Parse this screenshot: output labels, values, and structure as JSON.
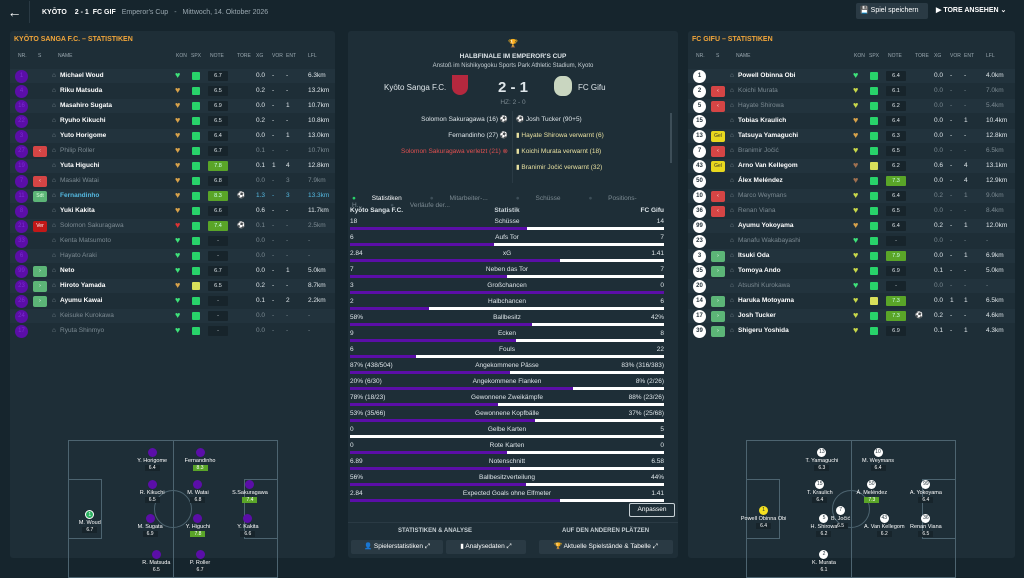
{
  "topbar": {
    "home": "KYŌTO",
    "score": "2 - 1",
    "away": "FC GIF",
    "competition": "Emperor's Cup",
    "date": "Mittwoch, 14. Oktober 2026",
    "save_label": "Spiel speichern",
    "goals_label": "TORE ANSEHEN"
  },
  "columns": [
    "NR.",
    "S",
    "NAME",
    "KON",
    "SPX",
    "NOTE",
    "TORE",
    "XG",
    "VOR",
    "ENT",
    "LFL"
  ],
  "left": {
    "title": "KYŌTO SANGA F.C. – STATISTIKEN",
    "players": [
      [
        "1",
        "",
        "Michael Woud",
        "g",
        "u",
        "6.7",
        "",
        "0.0",
        "-",
        "-",
        "6.3km",
        ""
      ],
      [
        "4",
        "",
        "Riku Matsuda",
        "o",
        "u",
        "6.5",
        "",
        "0.2",
        "-",
        "-",
        "13.2km",
        ""
      ],
      [
        "16",
        "",
        "Masahiro Sugata",
        "o",
        "u",
        "6.9",
        "",
        "0.0",
        "-",
        "1",
        "10.7km",
        ""
      ],
      [
        "22",
        "",
        "Ryuho Kikuchi",
        "o",
        "u",
        "6.5",
        "",
        "0.2",
        "-",
        "-",
        "10.8km",
        ""
      ],
      [
        "3",
        "",
        "Yuto Horigome",
        "o",
        "n",
        "6.4",
        "",
        "0.0",
        "-",
        "1",
        "13.0km",
        ""
      ],
      [
        "27",
        "sub",
        "Philip Roller",
        "o",
        "u",
        "6.7",
        "",
        "0.1",
        "-",
        "-",
        "10.7km",
        "dim"
      ],
      [
        "19",
        "",
        "Yuta Higuchi",
        "o",
        "u",
        "7.8",
        "",
        "0.1",
        "1",
        "4",
        "12.8km",
        ""
      ],
      [
        "7",
        "sub",
        "Masaki Watai",
        "o",
        "u",
        "6.8",
        "",
        "0.0",
        "-",
        "3",
        "7.9km",
        "dim"
      ],
      [
        "11",
        "Sdt",
        "Fernandinho",
        "o",
        "u",
        "8.3",
        "⚽",
        "1.3",
        "-",
        "3",
        "13.3km",
        "hl"
      ],
      [
        "8",
        "",
        "Yuki Kakita",
        "o",
        "n",
        "6.6",
        "",
        "0.6",
        "-",
        "-",
        "11.7km",
        ""
      ],
      [
        "21",
        "Ver",
        "Solomon Sakuragawa",
        "r",
        "u",
        "7.4",
        "⚽",
        "0.1",
        "-",
        "-",
        "2.5km",
        "dim"
      ],
      [
        "33",
        "",
        "Kenta Matsumoto",
        "g",
        "u",
        "-",
        "",
        "0.0",
        "-",
        "-",
        "-",
        "dim"
      ],
      [
        "6",
        "",
        "Hayato Araki",
        "g",
        "u",
        "-",
        "",
        "0.0",
        "-",
        "-",
        "-",
        "dim"
      ],
      [
        "99",
        "in",
        "Neto",
        "g",
        "u",
        "6.7",
        "",
        "0.0",
        "-",
        "1",
        "5.0km",
        ""
      ],
      [
        "23",
        "in",
        "Hiroto Yamada",
        "o",
        "y",
        "6.5",
        "",
        "0.2",
        "-",
        "-",
        "8.7km",
        ""
      ],
      [
        "26",
        "in",
        "Ayumu Kawai",
        "g",
        "u",
        "-",
        "",
        "0.1",
        "-",
        "2",
        "2.2km",
        ""
      ],
      [
        "24",
        "",
        "Keisuke Kurokawa",
        "g",
        "u",
        "-",
        "",
        "0.0",
        "-",
        "-",
        "-",
        "dim"
      ],
      [
        "17",
        "",
        "Ryuta Shinmyo",
        "g",
        "u",
        "-",
        "",
        "0.0",
        "-",
        "-",
        "-",
        "dim"
      ]
    ]
  },
  "right": {
    "title": "FC GIFU – STATISTIKEN",
    "players": [
      [
        "1",
        "",
        "Powell Obinna Obi",
        "g",
        "u",
        "6.4",
        "",
        "0.0",
        "-",
        "-",
        "4.0km",
        ""
      ],
      [
        "2",
        "sub",
        "Koichi Murata",
        "y",
        "n",
        "6.1",
        "",
        "0.0",
        "-",
        "-",
        "7.0km",
        "dim"
      ],
      [
        "5",
        "sub",
        "Hayate Shirowa",
        "y",
        "u",
        "6.2",
        "",
        "0.0",
        "-",
        "-",
        "5.4km",
        "dim"
      ],
      [
        "15",
        "",
        "Tobias Kraulich",
        "o",
        "u",
        "6.4",
        "",
        "0.0",
        "-",
        "1",
        "10.4km",
        ""
      ],
      [
        "13",
        "Gel",
        "Tatsuya Yamaguchi",
        "o",
        "u",
        "6.3",
        "",
        "0.0",
        "-",
        "-",
        "12.8km",
        ""
      ],
      [
        "7",
        "sub",
        "Branimir Jočić",
        "y",
        "u",
        "6.5",
        "",
        "0.0",
        "-",
        "-",
        "6.5km",
        "dim"
      ],
      [
        "43",
        "Gel",
        "Arno Van Kellegom",
        "b",
        "y",
        "6.2",
        "",
        "0.6",
        "-",
        "4",
        "13.1km",
        ""
      ],
      [
        "50",
        "",
        "Álex Meléndez",
        "b",
        "u",
        "7.3",
        "",
        "0.0",
        "-",
        "4",
        "12.9km",
        ""
      ],
      [
        "10",
        "sub",
        "Marco Weymans",
        "y",
        "u",
        "6.4",
        "",
        "0.2",
        "-",
        "1",
        "9.0km",
        "dim"
      ],
      [
        "36",
        "sub",
        "Renan Viana",
        "y",
        "n",
        "6.5",
        "",
        "0.0",
        "-",
        "-",
        "8.4km",
        "dim"
      ],
      [
        "99",
        "",
        "Ayumu Yokoyama",
        "o",
        "u",
        "6.4",
        "",
        "0.2",
        "-",
        "1",
        "12.0km",
        ""
      ],
      [
        "23",
        "",
        "Manafu Wakabayashi",
        "g",
        "u",
        "-",
        "",
        "0.0",
        "-",
        "-",
        "-",
        "dim"
      ],
      [
        "3",
        "in",
        "Itsuki Oda",
        "y",
        "u",
        "7.9",
        "",
        "0.0",
        "-",
        "1",
        "6.9km",
        ""
      ],
      [
        "35",
        "in",
        "Tomoya Ando",
        "y",
        "n",
        "6.9",
        "",
        "0.1",
        "-",
        "-",
        "5.0km",
        ""
      ],
      [
        "20",
        "",
        "Atsushi Kurokawa",
        "g",
        "u",
        "-",
        "",
        "0.0",
        "-",
        "-",
        "-",
        "dim"
      ],
      [
        "14",
        "in",
        "Haruka Motoyama",
        "y",
        "y",
        "7.3",
        "",
        "0.0",
        "1",
        "1",
        "6.5km",
        ""
      ],
      [
        "17",
        "in",
        "Josh Tucker",
        "y",
        "n",
        "7.3",
        "⚽",
        "0.2",
        "-",
        "-",
        "4.6km",
        ""
      ],
      [
        "39",
        "in",
        "Shigeru Yoshida",
        "y",
        "u",
        "6.9",
        "",
        "0.1",
        "-",
        "1",
        "4.3km",
        ""
      ]
    ]
  },
  "pitch_left": [
    [
      "",
      "Y. Horigome",
      "6.4"
    ],
    [
      "",
      "Fernandinho",
      "8.3"
    ],
    [
      "",
      "R. Kikuchi",
      "6.5"
    ],
    [
      "",
      "M. Watai",
      "6.8"
    ],
    [
      "",
      "S.Sakuragawa",
      "7.4"
    ],
    [
      "1",
      "M. Woud",
      "6.7"
    ],
    [
      "",
      "M. Sugata",
      "6.9"
    ],
    [
      "",
      "Y. Higuchi",
      "7.8"
    ],
    [
      "",
      "Y. Kakita",
      "6.6"
    ],
    [
      "",
      "R. Matsuda",
      "6.5"
    ],
    [
      "",
      "P. Roller",
      "6.7"
    ]
  ],
  "pitch_right": [
    [
      "13",
      "T. Yamaguchi",
      "6.3"
    ],
    [
      "10",
      "M. Weymans",
      "6.4"
    ],
    [
      "15",
      "T. Kraulich",
      "6.4"
    ],
    [
      "50",
      "Á. Meléndez",
      "7.3"
    ],
    [
      "99",
      "A. Yokoyama",
      "6.4"
    ],
    [
      "1",
      "Powell Obinna Obi",
      "6.4"
    ],
    [
      "7",
      "B. Jočić",
      "6.5"
    ],
    [
      "5",
      "H. Shirowa",
      "6.2"
    ],
    [
      "43",
      "A. Van Kellegom",
      "6.2"
    ],
    [
      "36",
      "Renan Viana",
      "6.5"
    ],
    [
      "2",
      "K. Murata",
      "6.1"
    ]
  ],
  "match": {
    "round": "HALBFINALE IM EMPEROR'S CUP",
    "venue": "Anstoß im Nishikyogoku Sports Park Athletic Stadium, Kyoto",
    "home": "Kyōto Sanga F.C.",
    "away": "FC Gifu",
    "score": "2 - 1",
    "halftime": "HZ: 2 - 0",
    "home_events": [
      "Solomon Sakuragawa (16)",
      "Fernandinho (27)",
      "Solomon Sakuragawa verletzt (21)"
    ],
    "away_events": [
      "Josh Tucker (90+5)",
      "Hayate Shirowa verwarnt (6)",
      "Koichi Murata verwarnt (18)",
      "Branimir Jočić verwarnt (32)"
    ]
  },
  "tabs": [
    "Statistiken",
    "Mitarbeiter-...",
    "Schüsse",
    "Positions-H...",
    "Verläufe der..."
  ],
  "stats_header": {
    "home": "Kyōto Sanga F.C.",
    "label": "Statistik",
    "away": "FC Gifu"
  },
  "stats": [
    [
      "18",
      "Schüsse",
      "14",
      0.5625
    ],
    [
      "6",
      "Aufs Tor",
      "7",
      0.46
    ],
    [
      "2.84",
      "xG",
      "1.41",
      0.67
    ],
    [
      "7",
      "Neben das Tor",
      "7",
      0.5
    ],
    [
      "3",
      "Großchancen",
      "0",
      1
    ],
    [
      "2",
      "Halbchancen",
      "6",
      0.25
    ],
    [
      "58%",
      "Ballbesitz",
      "42%",
      0.58
    ],
    [
      "9",
      "Ecken",
      "8",
      0.53
    ],
    [
      "6",
      "Fouls",
      "22",
      0.21
    ],
    [
      "87% (438/504)",
      "Angekommene Pässe",
      "83% (316/383)",
      0.51
    ],
    [
      "20% (6/30)",
      "Angekommene Flanken",
      "8% (2/26)",
      0.71
    ],
    [
      "78% (18/23)",
      "Gewonnene Zweikämpfe",
      "88% (23/26)",
      0.47
    ],
    [
      "53% (35/66)",
      "Gewonnene Kopfbälle",
      "37% (25/68)",
      0.59
    ],
    [
      "0",
      "Gelbe Karten",
      "5",
      0
    ],
    [
      "0",
      "Rote Karten",
      "0",
      0.5
    ],
    [
      "6.89",
      "Notenschnitt",
      "6.58",
      0.51
    ],
    [
      "56%",
      "Ballbesitzverteilung",
      "44%",
      0.56
    ],
    [
      "2.84",
      "Expected Goals ohne Elfmeter",
      "1.41",
      0.67
    ]
  ],
  "buttons": {
    "customize": "Anpassen",
    "section1": "STATISTIKEN & ANALYSE",
    "section2": "AUF DEN ANDEREN PLÄTZEN",
    "player_stats": "Spielerstatistiken",
    "analysis": "Analysedaten",
    "live_table": "Aktuelle Spielstände & Tabelle"
  }
}
